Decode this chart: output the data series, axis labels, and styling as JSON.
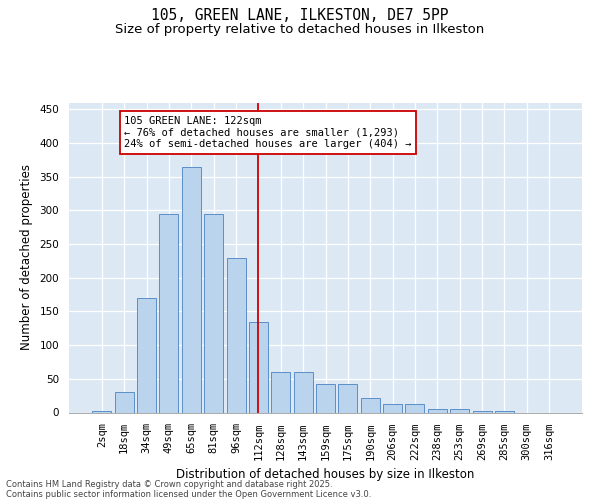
{
  "title": "105, GREEN LANE, ILKESTON, DE7 5PP",
  "subtitle": "Size of property relative to detached houses in Ilkeston",
  "xlabel": "Distribution of detached houses by size in Ilkeston",
  "ylabel": "Number of detached properties",
  "categories": [
    "2sqm",
    "18sqm",
    "34sqm",
    "49sqm",
    "65sqm",
    "81sqm",
    "96sqm",
    "112sqm",
    "128sqm",
    "143sqm",
    "159sqm",
    "175sqm",
    "190sqm",
    "206sqm",
    "222sqm",
    "238sqm",
    "253sqm",
    "269sqm",
    "285sqm",
    "300sqm",
    "316sqm"
  ],
  "values": [
    2,
    30,
    170,
    295,
    365,
    295,
    230,
    135,
    60,
    60,
    43,
    43,
    22,
    12,
    12,
    5,
    5,
    2,
    2,
    0,
    0
  ],
  "bar_color": "#bad4ed",
  "bar_edge_color": "#5b8fc9",
  "bg_color": "#dce9f5",
  "vline_color": "#cc0000",
  "annotation_text": "105 GREEN LANE: 122sqm\n← 76% of detached houses are smaller (1,293)\n24% of semi-detached houses are larger (404) →",
  "annotation_box_color": "#ffffff",
  "annotation_box_edge": "#cc0000",
  "footer": "Contains HM Land Registry data © Crown copyright and database right 2025.\nContains public sector information licensed under the Open Government Licence v3.0.",
  "ylim": [
    0,
    460
  ],
  "yticks": [
    0,
    50,
    100,
    150,
    200,
    250,
    300,
    350,
    400,
    450
  ],
  "title_fontsize": 10.5,
  "subtitle_fontsize": 9.5,
  "xlabel_fontsize": 8.5,
  "ylabel_fontsize": 8.5,
  "tick_fontsize": 7.5,
  "annotation_fontsize": 7.5,
  "footer_fontsize": 6.0
}
